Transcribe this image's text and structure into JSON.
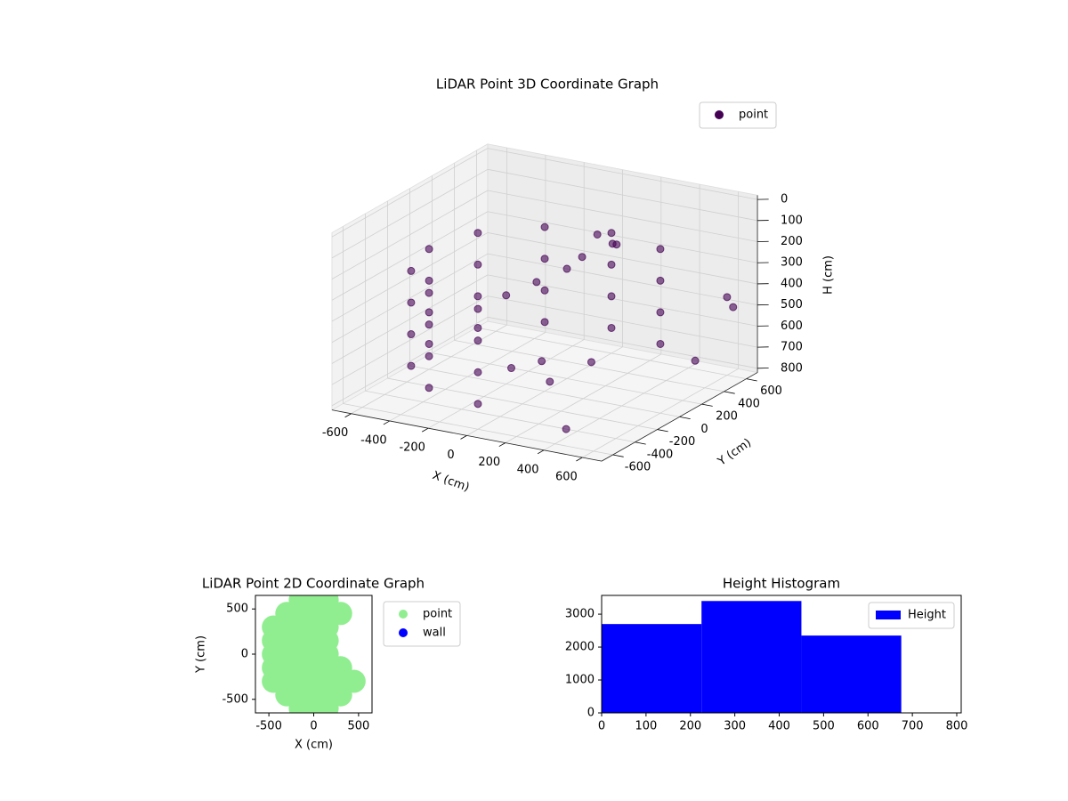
{
  "chart_data": [
    {
      "type": "scatter3d",
      "title": "LiDAR Point 3D Coordinate Graph",
      "xlabel": "X (cm)",
      "ylabel": "Y (cm)",
      "zlabel": "H (cm)",
      "xlim": [
        -700,
        700
      ],
      "ylim": [
        -700,
        700
      ],
      "zlim": [
        820,
        -20
      ],
      "xticks": [
        -600,
        -400,
        -200,
        0,
        200,
        400,
        600
      ],
      "yticks": [
        -600,
        -400,
        -200,
        0,
        200,
        400,
        600
      ],
      "zticks": [
        0,
        100,
        200,
        300,
        400,
        500,
        600,
        700,
        800
      ],
      "legend": "upper right",
      "series": [
        {
          "name": "point",
          "color": "#440154",
          "x": [
            300,
            0,
            -300,
            -520,
            -600,
            -520,
            -300,
            0,
            300,
            0,
            -300,
            -520,
            -600,
            -520,
            -300,
            0,
            300,
            0,
            -300,
            -520,
            -600,
            -520,
            -300,
            0,
            300,
            0,
            -300,
            -520,
            -600,
            -520,
            -300,
            0,
            100,
            150,
            50,
            200,
            0,
            -100,
            -200,
            100,
            200,
            0,
            300,
            600,
            620,
            550,
            400
          ],
          "y": [
            520,
            600,
            520,
            300,
            0,
            -300,
            -520,
            -600,
            520,
            600,
            520,
            300,
            0,
            -300,
            -520,
            -600,
            520,
            600,
            520,
            300,
            0,
            -300,
            -520,
            -600,
            520,
            600,
            520,
            300,
            0,
            -300,
            -520,
            -600,
            300,
            350,
            250,
            300,
            200,
            100,
            0,
            -200,
            -300,
            -300,
            -100,
            600,
            620,
            400,
            -500
          ],
          "z": [
            250,
            250,
            250,
            250,
            250,
            250,
            250,
            250,
            400,
            400,
            400,
            400,
            400,
            400,
            400,
            400,
            550,
            550,
            550,
            550,
            550,
            550,
            550,
            550,
            700,
            700,
            700,
            700,
            700,
            700,
            700,
            700,
            150,
            200,
            250,
            180,
            300,
            350,
            400,
            600,
            650,
            620,
            600,
            450,
            500,
            700,
            780
          ]
        }
      ]
    },
    {
      "type": "scatter",
      "title": "LiDAR Point 2D Coordinate Graph",
      "xlabel": "X (cm)",
      "ylabel": "Y (cm)",
      "xlim": [
        -650,
        650
      ],
      "ylim": [
        -650,
        650
      ],
      "xticks": [
        -500,
        0,
        500
      ],
      "yticks": [
        -500,
        0,
        500
      ],
      "legend": "outside upper right",
      "series": [
        {
          "name": "point",
          "color": "#90ee90",
          "x": [
            -450,
            -450,
            -450,
            -450,
            -450,
            -300,
            -300,
            -300,
            -300,
            -300,
            -300,
            -300,
            -150,
            -150,
            -150,
            -150,
            -150,
            -150,
            -150,
            -150,
            -150,
            0,
            0,
            0,
            0,
            0,
            0,
            0,
            0,
            0,
            150,
            150,
            150,
            150,
            150,
            150,
            150,
            150,
            150,
            300,
            300,
            300,
            300,
            450
          ],
          "y": [
            -300,
            -150,
            0,
            150,
            300,
            -450,
            -300,
            -150,
            0,
            150,
            300,
            450,
            -600,
            -450,
            -300,
            -150,
            0,
            150,
            300,
            450,
            600,
            -600,
            -450,
            -300,
            -150,
            0,
            150,
            300,
            450,
            600,
            -600,
            -450,
            -300,
            -150,
            0,
            150,
            300,
            450,
            600,
            -450,
            -300,
            -150,
            450,
            -300
          ]
        },
        {
          "name": "wall",
          "color": "#0000ff",
          "x": [],
          "y": []
        }
      ]
    },
    {
      "type": "histogram",
      "title": "Height Histogram",
      "bins": [
        0,
        225,
        450,
        675
      ],
      "values": [
        2700,
        3400,
        2350
      ],
      "name": "Height",
      "color": "#0000ff",
      "xlim": [
        0,
        810
      ],
      "ylim": [
        0,
        3570
      ],
      "xticks": [
        0,
        100,
        200,
        300,
        400,
        500,
        600,
        700,
        800
      ],
      "yticks": [
        0,
        1000,
        2000,
        3000
      ],
      "legend": "upper right"
    }
  ]
}
